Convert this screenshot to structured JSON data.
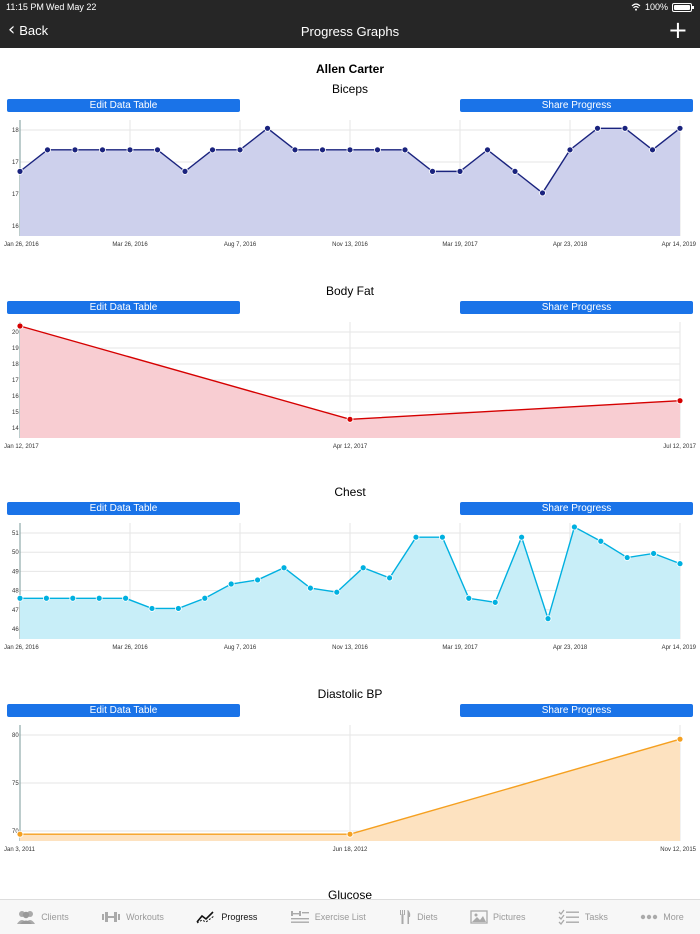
{
  "status": {
    "time": "11:15 PM",
    "date": "Wed May 22",
    "battery": "100%"
  },
  "nav": {
    "back_label": "Back",
    "title": "Progress Graphs",
    "add_icon": "plus-icon"
  },
  "client_name": "Allen Carter",
  "buttons": {
    "edit": "Edit Data Table",
    "share": "Share Progress"
  },
  "colors": {
    "button": "#1a73e8",
    "navbar": "#262626"
  },
  "chart_data": [
    {
      "type": "area",
      "title": "Biceps",
      "color": "#1a237e",
      "fill": "#cdd0ec",
      "x_labels": [
        "Jan 26, 2016",
        "Mar 26, 2016",
        "Aug 7, 2016",
        "Nov 13, 2016",
        "Mar 19, 2017",
        "Apr 23, 2018",
        "Apr 14, 2019"
      ],
      "y_ticks": [
        "16",
        "17",
        "17",
        "18"
      ],
      "ylim": [
        16,
        18.6
      ],
      "values": [
        17.5,
        18,
        18,
        18,
        18,
        18,
        17.5,
        18,
        18,
        18.5,
        18,
        18,
        18,
        18,
        18,
        17.5,
        17.5,
        18,
        17.5,
        17,
        18,
        18.5,
        18.5,
        18,
        18.5
      ]
    },
    {
      "type": "area",
      "title": "Body Fat",
      "color": "#d50000",
      "fill": "#f8cdd2",
      "x_labels": [
        "Jan 12, 2017",
        "Apr 12, 2017",
        "Jul 12, 2017"
      ],
      "y_ticks": [
        "14",
        "15",
        "16",
        "17",
        "18",
        "19",
        "20"
      ],
      "ylim": [
        14,
        20
      ],
      "values": [
        20,
        15,
        16
      ]
    },
    {
      "type": "area",
      "title": "Chest",
      "color": "#00b0e0",
      "fill": "#c8eef8",
      "x_labels": [
        "Jan 26, 2016",
        "Mar 26, 2016",
        "Aug 7, 2016",
        "Nov 13, 2016",
        "Mar 19, 2017",
        "Apr 23, 2018",
        "Apr 14, 2019"
      ],
      "y_ticks": [
        "46",
        "47",
        "48",
        "49",
        "50",
        "51"
      ],
      "ylim": [
        46,
        51.5
      ],
      "values": [
        48,
        48,
        48,
        48,
        48,
        47.5,
        47.5,
        48,
        48.7,
        48.9,
        49.5,
        48.5,
        48.3,
        49.5,
        49,
        51,
        51,
        48,
        47.8,
        51,
        47,
        51.5,
        50.8,
        50,
        50.2,
        49.7
      ]
    },
    {
      "type": "area",
      "title": "Diastolic BP",
      "color": "#f5a020",
      "fill": "#fde2c0",
      "x_labels": [
        "Jan 3, 2011",
        "Jun 18, 2012",
        "Nov 12, 2015"
      ],
      "y_ticks": [
        "70",
        "75",
        "80"
      ],
      "ylim": [
        67,
        83.5
      ],
      "values": [
        68,
        68,
        82
      ]
    }
  ],
  "next_section_title": "Glucose",
  "tabs": [
    {
      "label": "Clients",
      "icon": "clients-icon"
    },
    {
      "label": "Workouts",
      "icon": "dumbbell-icon"
    },
    {
      "label": "Progress",
      "icon": "progress-icon",
      "active": true
    },
    {
      "label": "Exercise List",
      "icon": "exercise-list-icon"
    },
    {
      "label": "Diets",
      "icon": "fork-knife-icon"
    },
    {
      "label": "Pictures",
      "icon": "picture-icon"
    },
    {
      "label": "Tasks",
      "icon": "tasks-icon"
    },
    {
      "label": "More",
      "icon": "more-icon"
    }
  ]
}
